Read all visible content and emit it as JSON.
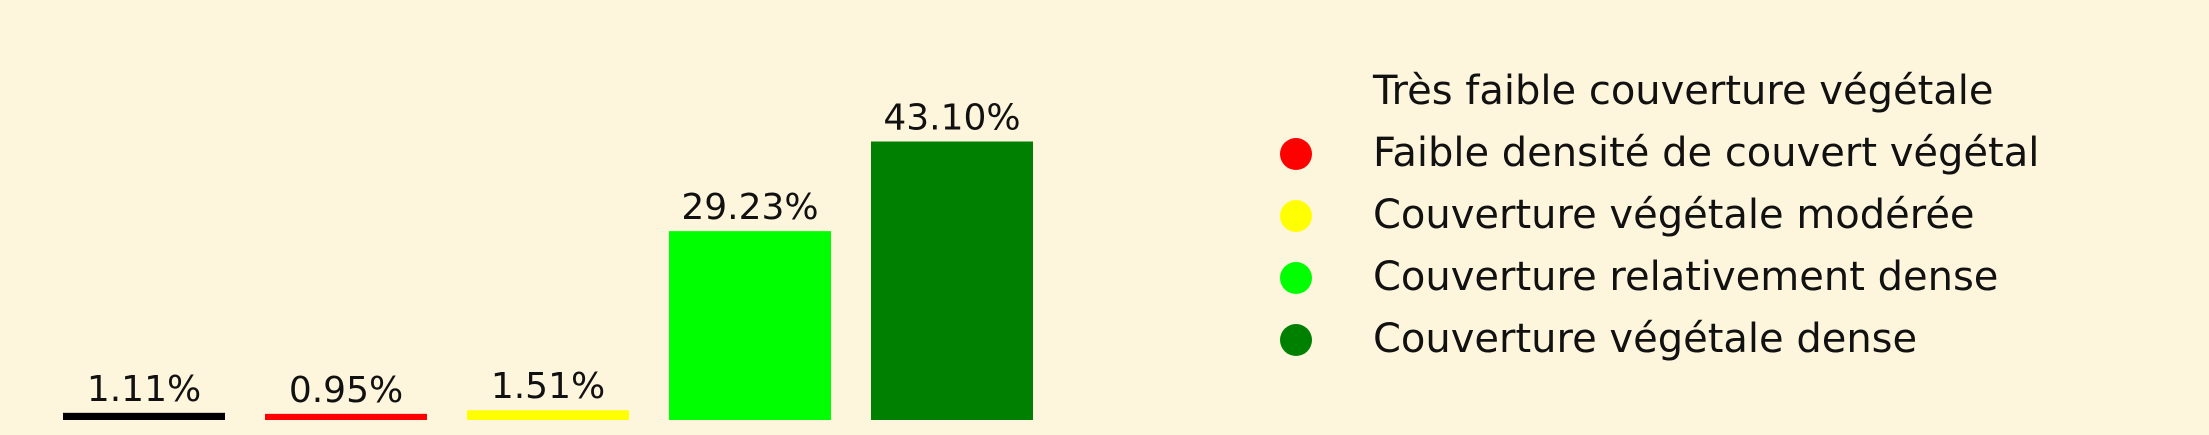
{
  "chart_data": {
    "type": "bar",
    "categories": [
      "Très faible couverture végétale",
      "Faible densité de couvert végétal",
      "Couverture végétale modérée",
      "Couverture relativement dense",
      "Couverture végétale dense"
    ],
    "values": [
      1.11,
      0.95,
      1.51,
      29.23,
      43.1
    ],
    "value_labels": [
      "1.11%",
      "0.95%",
      "1.51%",
      "29.23%",
      "43.10%"
    ],
    "colors": [
      "#000000",
      "#ff0000",
      "#ffff00",
      "#00ff00",
      "#008000"
    ],
    "ylim": [
      0,
      52
    ],
    "grid": false,
    "legend_placement": "right"
  },
  "legend": {
    "items": [
      {
        "label": "Très faible couverture végétale",
        "color": "#000000",
        "marker_visible": false
      },
      {
        "label": "Faible densité de couvert végétal",
        "color": "#ff0000",
        "marker_visible": true
      },
      {
        "label": "Couverture végétale modérée",
        "color": "#ffff00",
        "marker_visible": true
      },
      {
        "label": "Couverture relativement dense",
        "color": "#00ff00",
        "marker_visible": true
      },
      {
        "label": "Couverture végétale dense",
        "color": "#008000",
        "marker_visible": true
      }
    ]
  },
  "colors": {
    "background": "#fdf5dc",
    "text": "#111111"
  }
}
